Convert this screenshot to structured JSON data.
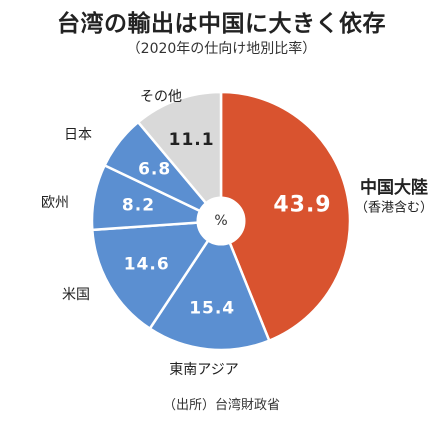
{
  "title": "台湾の輸出は中国に大きく依存",
  "subtitle": "（2020年の仕向け地別比率）",
  "source": "（出所）台湾財政省",
  "colors": {
    "highlight": "#d9532f",
    "main": "#5b8fd1",
    "other": "#d9d9d9",
    "stroke": "#ffffff"
  },
  "chart_data": {
    "type": "pie",
    "unit": "%",
    "slices": [
      {
        "label": "中国大陸",
        "sublabel": "（香港含む）",
        "value": 43.9,
        "value_text": "43.9",
        "color": "#d9532f"
      },
      {
        "label": "東南アジア",
        "value": 15.4,
        "value_text": "15.4",
        "color": "#5b8fd1"
      },
      {
        "label": "米国",
        "value": 14.6,
        "value_text": "14.6",
        "color": "#5b8fd1"
      },
      {
        "label": "欧州",
        "value": 8.2,
        "value_text": "8.2",
        "color": "#5b8fd1"
      },
      {
        "label": "日本",
        "value": 6.8,
        "value_text": "6.8",
        "color": "#5b8fd1"
      },
      {
        "label": "その他",
        "value": 11.1,
        "value_text": "11.1",
        "color": "#d9d9d9"
      }
    ]
  }
}
